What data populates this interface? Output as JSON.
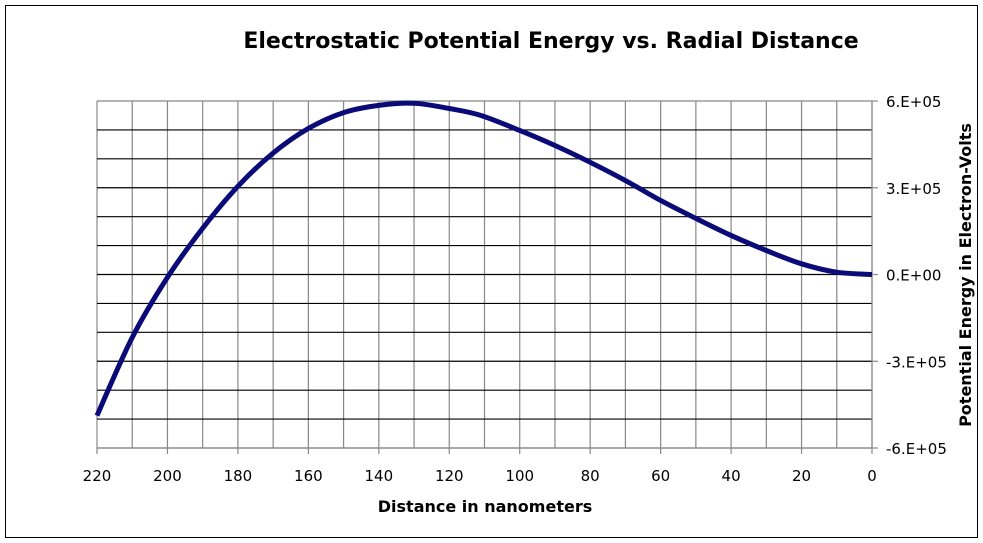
{
  "chart_data": {
    "type": "line",
    "title": "Electrostatic Potential Energy vs. Radial Distance",
    "xlabel": "Distance in nanometers",
    "ylabel": "Potential Energy in Electron-Volts",
    "xlim": [
      220,
      0
    ],
    "ylim": [
      -600000,
      600000
    ],
    "x_reversed": true,
    "y_axis_position": "right",
    "grid": true,
    "x_ticks": [
      220,
      200,
      180,
      160,
      140,
      120,
      100,
      80,
      60,
      40,
      20,
      0
    ],
    "x_tick_labels": [
      "220",
      "200",
      "180",
      "160",
      "140",
      "120",
      "100",
      "80",
      "60",
      "40",
      "20",
      "0"
    ],
    "y_ticks": [
      600000,
      300000,
      0,
      -300000,
      -600000
    ],
    "y_tick_labels": [
      "6.E+05",
      "3.E+05",
      "0.E+00",
      "-3.E+05",
      "-6.E+05"
    ],
    "line_color": "#0a0a78",
    "series": [
      {
        "x": [
          220,
          210,
          200,
          190,
          180,
          170,
          160,
          150,
          140,
          130,
          120,
          111,
          100,
          90,
          80,
          70,
          60,
          50,
          40,
          30,
          20,
          10,
          0
        ],
        "y": [
          -488000,
          -218000,
          -10000,
          160000,
          305000,
          420000,
          505000,
          560000,
          585000,
          592000,
          574000,
          550000,
          498000,
          446000,
          388000,
          325000,
          256000,
          194000,
          135000,
          83000,
          37000,
          8000,
          0
        ]
      }
    ]
  }
}
